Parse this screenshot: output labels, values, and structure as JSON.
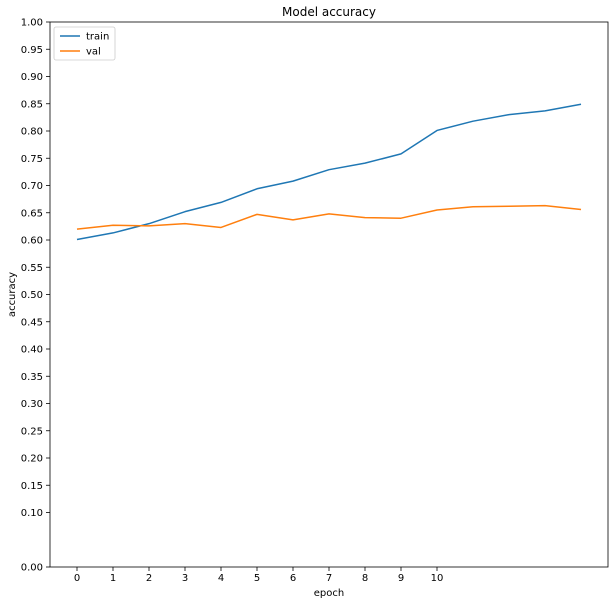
{
  "chart_data": {
    "type": "line",
    "title": "Model accuracy",
    "xlabel": "epoch",
    "ylabel": "accuracy",
    "x": [
      0,
      1,
      2,
      3,
      4,
      5,
      6,
      7,
      8,
      9,
      10,
      11,
      12,
      13,
      14
    ],
    "x_ticks": [
      0,
      1,
      2,
      3,
      4,
      5,
      6,
      7,
      8,
      9,
      10
    ],
    "xlim": [
      -0.75,
      14.75
    ],
    "ylim": [
      0.0,
      1.0
    ],
    "y_ticks": [
      "0.00",
      "0.10",
      "0.15",
      "0.20",
      "0.25",
      "0.30",
      "0.35",
      "0.40",
      "0.45",
      "0.50",
      "0.55",
      "0.60",
      "0.65",
      "0.70",
      "0.75",
      "0.80",
      "0.85",
      "0.90",
      "0.95",
      "1.00"
    ],
    "grid": false,
    "legend_position": "top-left",
    "series": [
      {
        "name": "train",
        "color": "#1f77b4",
        "values": [
          0.601,
          0.613,
          0.63,
          0.652,
          0.669,
          0.694,
          0.708,
          0.729,
          0.741,
          0.758,
          0.801,
          0.818,
          0.83,
          0.837,
          0.849
        ]
      },
      {
        "name": "val",
        "color": "#ff7f0e",
        "values": [
          0.62,
          0.627,
          0.626,
          0.63,
          0.623,
          0.647,
          0.637,
          0.648,
          0.641,
          0.64,
          0.655,
          0.661,
          0.662,
          0.663,
          0.656
        ]
      }
    ]
  }
}
